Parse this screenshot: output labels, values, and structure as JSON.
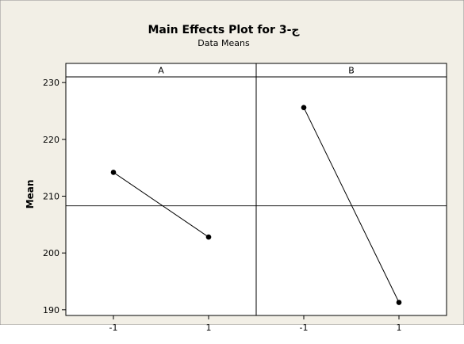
{
  "chart_data": {
    "type": "line",
    "title": "Main Effects Plot for ج-3",
    "subtitle": "Data Means",
    "ylabel": "Mean",
    "xlabel": "",
    "ylim": [
      189,
      231
    ],
    "yticks": [
      190,
      200,
      210,
      220,
      230
    ],
    "reference_line": 208.3,
    "grid": false,
    "colors": {
      "figure_bg": "#f2efe6",
      "plot_bg": "#ffffff",
      "line": "#000000"
    },
    "panels": [
      {
        "name": "A",
        "categories": [
          "-1",
          "1"
        ],
        "values": [
          214.2,
          202.8
        ]
      },
      {
        "name": "B",
        "categories": [
          "-1",
          "1"
        ],
        "values": [
          225.6,
          191.3
        ]
      }
    ]
  }
}
